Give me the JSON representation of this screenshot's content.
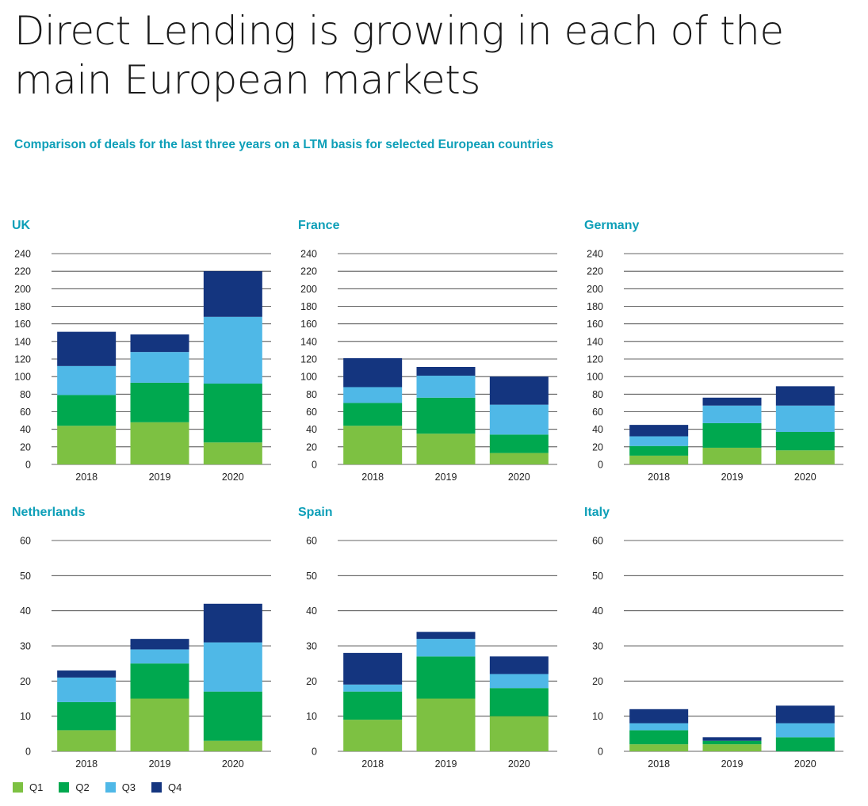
{
  "page": {
    "title_lines": [
      "Direct Lending is growing in each of the",
      "main European markets"
    ],
    "subtitle": "Comparison of deals for the last three years on a LTM basis for selected European countries"
  },
  "colors": {
    "Q1": "#7dc142",
    "Q2": "#00a84f",
    "Q3": "#4fb8e7",
    "Q4": "#14357f",
    "accent": "#0d9fb8"
  },
  "legend": [
    {
      "name": "Q1",
      "color": "#7dc142"
    },
    {
      "name": "Q2",
      "color": "#00a84f"
    },
    {
      "name": "Q3",
      "color": "#4fb8e7"
    },
    {
      "name": "Q4",
      "color": "#14357f"
    }
  ],
  "chart_data": [
    {
      "type": "bar",
      "stacked": true,
      "title": "UK",
      "categories": [
        "2018",
        "2019",
        "2020"
      ],
      "ylim": [
        0,
        240
      ],
      "yticks": [
        0,
        20,
        40,
        60,
        80,
        100,
        120,
        140,
        160,
        180,
        200,
        220,
        240
      ],
      "grid": true,
      "series": [
        {
          "name": "Q1",
          "values": [
            44,
            48,
            25
          ]
        },
        {
          "name": "Q2",
          "values": [
            35,
            45,
            67
          ]
        },
        {
          "name": "Q3",
          "values": [
            33,
            35,
            76
          ]
        },
        {
          "name": "Q4",
          "values": [
            39,
            20,
            52
          ]
        }
      ]
    },
    {
      "type": "bar",
      "stacked": true,
      "title": "France",
      "categories": [
        "2018",
        "2019",
        "2020"
      ],
      "ylim": [
        0,
        240
      ],
      "yticks": [
        0,
        20,
        40,
        60,
        80,
        100,
        120,
        140,
        160,
        180,
        200,
        220,
        240
      ],
      "grid": true,
      "series": [
        {
          "name": "Q1",
          "values": [
            44,
            35,
            13
          ]
        },
        {
          "name": "Q2",
          "values": [
            26,
            41,
            21
          ]
        },
        {
          "name": "Q3",
          "values": [
            18,
            25,
            34
          ]
        },
        {
          "name": "Q4",
          "values": [
            33,
            10,
            32
          ]
        }
      ]
    },
    {
      "type": "bar",
      "stacked": true,
      "title": "Germany",
      "categories": [
        "2018",
        "2019",
        "2020"
      ],
      "ylim": [
        0,
        240
      ],
      "yticks": [
        0,
        20,
        40,
        60,
        80,
        100,
        120,
        140,
        160,
        180,
        200,
        220,
        240
      ],
      "grid": true,
      "series": [
        {
          "name": "Q1",
          "values": [
            10,
            19,
            16
          ]
        },
        {
          "name": "Q2",
          "values": [
            11,
            28,
            21
          ]
        },
        {
          "name": "Q3",
          "values": [
            11,
            20,
            30
          ]
        },
        {
          "name": "Q4",
          "values": [
            13,
            9,
            22
          ]
        }
      ]
    },
    {
      "type": "bar",
      "stacked": true,
      "title": "Netherlands",
      "categories": [
        "2018",
        "2019",
        "2020"
      ],
      "ylim": [
        0,
        60
      ],
      "yticks": [
        0,
        10,
        20,
        30,
        40,
        50,
        60
      ],
      "grid": true,
      "series": [
        {
          "name": "Q1",
          "values": [
            6,
            15,
            3
          ]
        },
        {
          "name": "Q2",
          "values": [
            8,
            10,
            14
          ]
        },
        {
          "name": "Q3",
          "values": [
            7,
            4,
            14
          ]
        },
        {
          "name": "Q4",
          "values": [
            2,
            3,
            11
          ]
        }
      ]
    },
    {
      "type": "bar",
      "stacked": true,
      "title": "Spain",
      "categories": [
        "2018",
        "2019",
        "2020"
      ],
      "ylim": [
        0,
        60
      ],
      "yticks": [
        0,
        10,
        20,
        30,
        40,
        50,
        60
      ],
      "grid": true,
      "series": [
        {
          "name": "Q1",
          "values": [
            9,
            15,
            10
          ]
        },
        {
          "name": "Q2",
          "values": [
            8,
            12,
            8
          ]
        },
        {
          "name": "Q3",
          "values": [
            2,
            5,
            4
          ]
        },
        {
          "name": "Q4",
          "values": [
            9,
            2,
            5
          ]
        }
      ]
    },
    {
      "type": "bar",
      "stacked": true,
      "title": "Italy",
      "categories": [
        "2018",
        "2019",
        "2020"
      ],
      "ylim": [
        0,
        60
      ],
      "yticks": [
        0,
        10,
        20,
        30,
        40,
        50,
        60
      ],
      "grid": true,
      "series": [
        {
          "name": "Q1",
          "values": [
            2,
            2,
            0
          ]
        },
        {
          "name": "Q2",
          "values": [
            4,
            1,
            4
          ]
        },
        {
          "name": "Q3",
          "values": [
            2,
            0,
            4
          ]
        },
        {
          "name": "Q4",
          "values": [
            4,
            1,
            5
          ]
        }
      ]
    }
  ]
}
